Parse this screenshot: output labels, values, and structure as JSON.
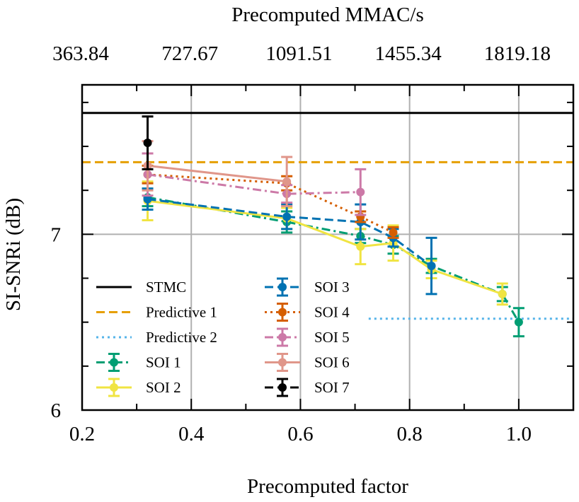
{
  "chart_data": {
    "type": "line",
    "title": "",
    "xlabel": "Precomputed factor",
    "ylabel": "SI-SNRi (dB)",
    "top_xlabel": "Precomputed MMAC/s",
    "xlim": [
      0.2,
      1.1
    ],
    "ylim": [
      6.0,
      7.85
    ],
    "x_ticks": [
      0.2,
      0.4,
      0.6,
      0.8,
      1.0
    ],
    "x_tick_labels": [
      "0.2",
      "0.4",
      "0.6",
      "0.8",
      "1.0"
    ],
    "y_ticks": [
      6,
      7
    ],
    "y_tick_labels": [
      "6",
      "7"
    ],
    "top_ticks": [
      0.2,
      0.4,
      0.6,
      0.8,
      1.0
    ],
    "top_tick_labels": [
      "363.84",
      "727.67",
      "1091.51",
      "1455.34",
      "1819.18"
    ],
    "grid": true,
    "legend_position": "lower-left",
    "hlines": [
      {
        "name": "STMC",
        "y": 7.69,
        "x_from": 0.2,
        "x_to": 1.1,
        "color": "#000000",
        "style": "solid"
      },
      {
        "name": "Predictive 1",
        "y": 7.41,
        "x_from": 0.2,
        "x_to": 1.1,
        "color": "#E69F00",
        "style": "dashed"
      },
      {
        "name": "Predictive 2",
        "y": 6.52,
        "x_from": 0.725,
        "x_to": 1.1,
        "color": "#56B4E9",
        "style": "dotted"
      }
    ],
    "series": [
      {
        "name": "SOI 1",
        "color": "#009E73",
        "style": "dashdot",
        "x": [
          0.32,
          0.575,
          0.71,
          0.77,
          0.84,
          0.97,
          1.0
        ],
        "y": [
          7.21,
          7.07,
          6.99,
          6.94,
          6.82,
          6.66,
          6.5
        ],
        "err": [
          0.05,
          0.06,
          0.04,
          0.05,
          0.04,
          0.04,
          0.08
        ]
      },
      {
        "name": "SOI 2",
        "color": "#F0E442",
        "style": "solid",
        "x": [
          0.32,
          0.575,
          0.71,
          0.77,
          0.84,
          0.97
        ],
        "y": [
          7.19,
          7.09,
          6.93,
          6.95,
          6.8,
          6.66
        ],
        "err": [
          0.11,
          0.06,
          0.1,
          0.1,
          0.05,
          0.06
        ]
      },
      {
        "name": "SOI 3",
        "color": "#0072B2",
        "style": "dashed",
        "x": [
          0.32,
          0.575,
          0.71,
          0.77,
          0.84
        ],
        "y": [
          7.2,
          7.1,
          7.07,
          6.98,
          6.82
        ],
        "err": [
          0.06,
          0.07,
          0.1,
          0.05,
          0.16
        ]
      },
      {
        "name": "SOI 4",
        "color": "#D55E00",
        "style": "dotted",
        "x": [
          0.32,
          0.575,
          0.71,
          0.77
        ],
        "y": [
          7.34,
          7.29,
          7.1,
          7.01
        ],
        "err": [
          0.05,
          0.04,
          0.03,
          0.03
        ]
      },
      {
        "name": "SOI 5",
        "color": "#CC79A7",
        "style": "dashdot",
        "x": [
          0.32,
          0.575,
          0.71
        ],
        "y": [
          7.34,
          7.23,
          7.24
        ],
        "err": [
          0.12,
          0.05,
          0.13
        ]
      },
      {
        "name": "SOI 6",
        "color": "#E0968A",
        "style": "solid",
        "x": [
          0.32,
          0.575
        ],
        "y": [
          7.39,
          7.3
        ],
        "err": [
          0.14,
          0.14
        ]
      },
      {
        "name": "SOI 7",
        "color": "#000000",
        "style": "dashed",
        "x": [
          0.32
        ],
        "y": [
          7.52
        ],
        "err": [
          0.15
        ]
      }
    ]
  }
}
